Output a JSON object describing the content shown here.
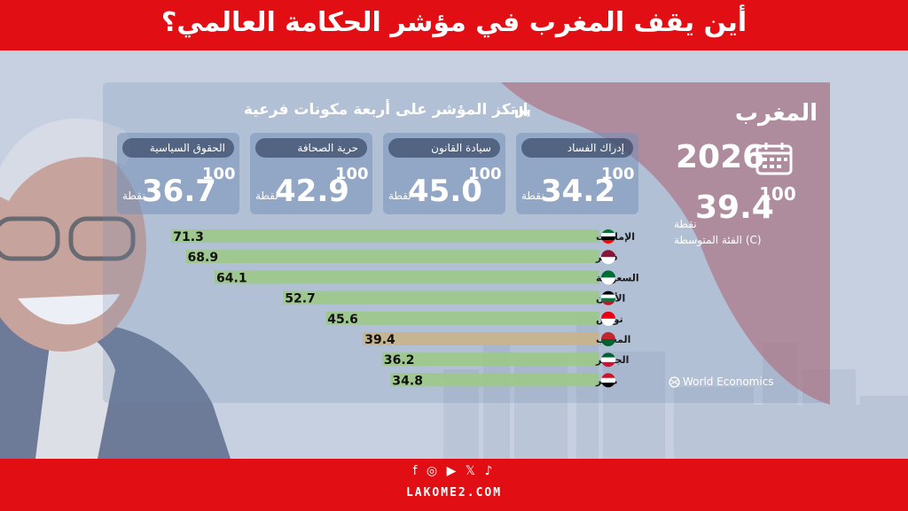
{
  "header": {
    "title": "أين يقف المغرب في مؤشر الحكامة العالمي؟"
  },
  "highlight": {
    "country": "المغرب",
    "year": "2026",
    "score": "39.4",
    "max": "100",
    "unit": "نقطة",
    "category": "الفئة المتوسطة (C)"
  },
  "subtitle": "يرتكز المؤشر على أربعة مكونات فرعية",
  "components": [
    {
      "label": "إدراك الفساد",
      "value": "34.2",
      "max": "100",
      "unit": "نقطة"
    },
    {
      "label": "سيادة القانون",
      "value": "45.0",
      "max": "100",
      "unit": "نقطة"
    },
    {
      "label": "حرية الصحافة",
      "value": "42.9",
      "max": "100",
      "unit": "نقطة"
    },
    {
      "label": "الحقوق السياسية",
      "value": "36.7",
      "max": "100",
      "unit": "نقطة"
    }
  ],
  "chart_data": {
    "type": "bar",
    "categories": [
      "الإمارات",
      "قطر",
      "السعودية",
      "الأردن",
      "تونس",
      "المغرب",
      "الجزائر",
      "مصر"
    ],
    "values": [
      71.3,
      68.9,
      64.1,
      52.7,
      45.6,
      39.4,
      36.2,
      34.8
    ],
    "labels": [
      "71.3",
      "68.9",
      "64.1",
      "52.7",
      "45.6",
      "39.4",
      "36.2",
      "34.8"
    ],
    "highlight_index": 5,
    "bar_color": "#9cc98a",
    "highlight_color": "#c9b28a",
    "ylim": [
      0,
      100
    ]
  },
  "source": "World Economics",
  "footer": {
    "social": "f ◎ ▶ 𝕏 ♪",
    "site": "LAKOME2.COM"
  },
  "colors": {
    "brand_red": "#e10e14"
  }
}
